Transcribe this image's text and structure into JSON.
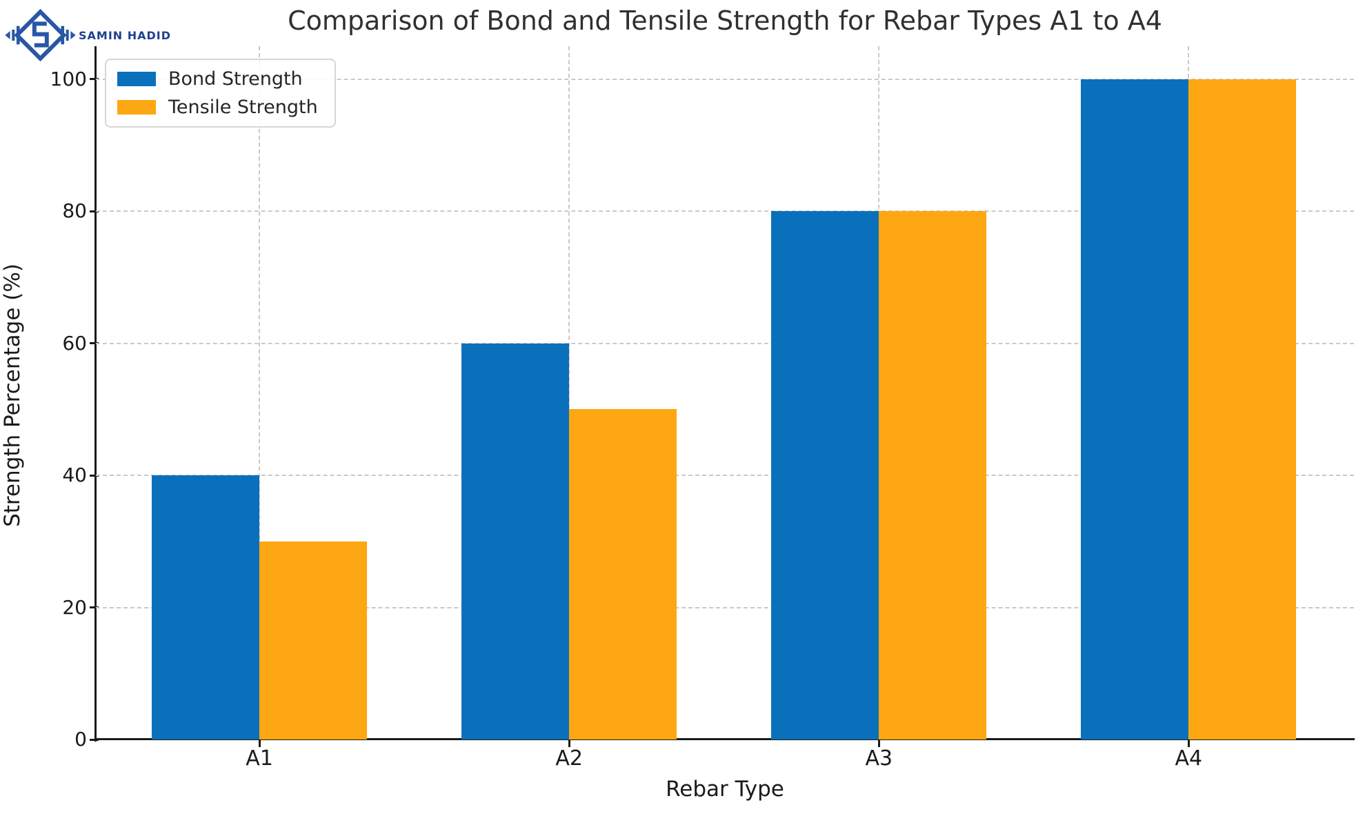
{
  "logo": {
    "brand": "SAMIN HADID",
    "brand_color": "#20408f",
    "emblem_color": "#2a56a5"
  },
  "chart_data": {
    "type": "bar",
    "title": "Comparison of Bond and Tensile Strength for Rebar Types A1 to A4",
    "xlabel": "Rebar Type",
    "ylabel": "Strength Percentage (%)",
    "categories": [
      "A1",
      "A2",
      "A3",
      "A4"
    ],
    "series": [
      {
        "name": "Bond Strength",
        "color": "#0b70bc",
        "values": [
          40,
          60,
          80,
          100
        ]
      },
      {
        "name": "Tensile Strength",
        "color": "#fda712",
        "values": [
          30,
          50,
          80,
          100
        ]
      }
    ],
    "ylim": [
      0,
      105
    ],
    "yticks": [
      0,
      20,
      40,
      60,
      80,
      100
    ],
    "grid": true,
    "grid_style": "dashed",
    "legend_position": "upper left"
  }
}
